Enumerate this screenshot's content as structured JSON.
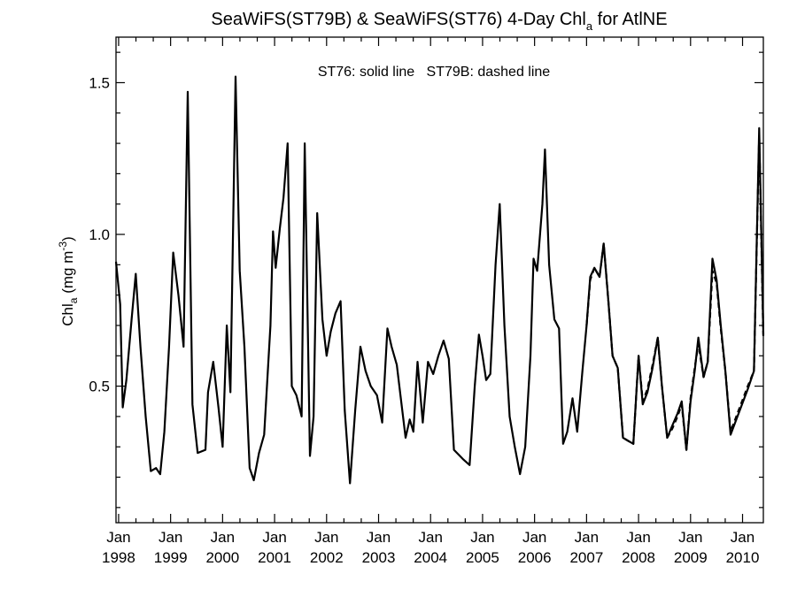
{
  "chart_data": {
    "type": "line",
    "title": {
      "main": "SeaWiFS(ST79B) & SeaWiFS(ST76) 4-Day Chl",
      "subscript": "a",
      "suffix": " for AtlNE"
    },
    "ylabel": {
      "main": "Chl",
      "subscript": "a",
      "units_prefix": " (mg m",
      "units_sup": "-3",
      "units_suffix": ")"
    },
    "annotation": "ST76: solid line   ST79B: dashed line",
    "xlim": [
      1997.95,
      2010.4
    ],
    "ylim": [
      0.05,
      1.65
    ],
    "y_ticks": [
      0.5,
      1.0,
      1.5
    ],
    "y_tick_labels": [
      "0.5",
      "1.0",
      "1.5"
    ],
    "x_ticks": [
      {
        "x": 1998,
        "month": "Jan",
        "year": "1998"
      },
      {
        "x": 1999,
        "month": "Jan",
        "year": "1999"
      },
      {
        "x": 2000,
        "month": "Jan",
        "year": "2000"
      },
      {
        "x": 2001,
        "month": "Jan",
        "year": "2001"
      },
      {
        "x": 2002,
        "month": "Jan",
        "year": "2002"
      },
      {
        "x": 2003,
        "month": "Jan",
        "year": "2003"
      },
      {
        "x": 2004,
        "month": "Jan",
        "year": "2004"
      },
      {
        "x": 2005,
        "month": "Jan",
        "year": "2005"
      },
      {
        "x": 2006,
        "month": "Jan",
        "year": "2006"
      },
      {
        "x": 2007,
        "month": "Jan",
        "year": "2007"
      },
      {
        "x": 2008,
        "month": "Jan",
        "year": "2008"
      },
      {
        "x": 2009,
        "month": "Jan",
        "year": "2009"
      },
      {
        "x": 2010,
        "month": "Jan",
        "year": "2010"
      }
    ],
    "grid": false,
    "legend": "none",
    "series": [
      {
        "label": "ST76",
        "style": "solid",
        "color": "#000000",
        "points": [
          [
            1997.95,
            0.91
          ],
          [
            1998.03,
            0.77
          ],
          [
            1998.08,
            0.43
          ],
          [
            1998.15,
            0.52
          ],
          [
            1998.25,
            0.72
          ],
          [
            1998.33,
            0.87
          ],
          [
            1998.42,
            0.63
          ],
          [
            1998.52,
            0.4
          ],
          [
            1998.62,
            0.22
          ],
          [
            1998.72,
            0.23
          ],
          [
            1998.8,
            0.21
          ],
          [
            1998.88,
            0.35
          ],
          [
            1998.97,
            0.63
          ],
          [
            1999.05,
            0.94
          ],
          [
            1999.15,
            0.8
          ],
          [
            1999.25,
            0.63
          ],
          [
            1999.33,
            1.47
          ],
          [
            1999.42,
            0.44
          ],
          [
            1999.52,
            0.28
          ],
          [
            1999.67,
            0.29
          ],
          [
            1999.72,
            0.48
          ],
          [
            1999.82,
            0.58
          ],
          [
            1999.92,
            0.43
          ],
          [
            2000.0,
            0.3
          ],
          [
            2000.08,
            0.7
          ],
          [
            2000.15,
            0.48
          ],
          [
            2000.25,
            1.52
          ],
          [
            2000.33,
            0.88
          ],
          [
            2000.42,
            0.63
          ],
          [
            2000.52,
            0.23
          ],
          [
            2000.6,
            0.19
          ],
          [
            2000.7,
            0.28
          ],
          [
            2000.8,
            0.34
          ],
          [
            2000.92,
            0.7
          ],
          [
            2000.97,
            1.01
          ],
          [
            2001.02,
            0.89
          ],
          [
            2001.1,
            1.02
          ],
          [
            2001.17,
            1.12
          ],
          [
            2001.25,
            1.3
          ],
          [
            2001.33,
            0.5
          ],
          [
            2001.42,
            0.47
          ],
          [
            2001.52,
            0.4
          ],
          [
            2001.58,
            1.3
          ],
          [
            2001.68,
            0.27
          ],
          [
            2001.75,
            0.4
          ],
          [
            2001.82,
            1.07
          ],
          [
            2001.92,
            0.72
          ],
          [
            2002.0,
            0.6
          ],
          [
            2002.08,
            0.68
          ],
          [
            2002.17,
            0.74
          ],
          [
            2002.27,
            0.78
          ],
          [
            2002.35,
            0.42
          ],
          [
            2002.45,
            0.18
          ],
          [
            2002.55,
            0.42
          ],
          [
            2002.65,
            0.63
          ],
          [
            2002.75,
            0.55
          ],
          [
            2002.85,
            0.5
          ],
          [
            2002.97,
            0.47
          ],
          [
            2003.07,
            0.38
          ],
          [
            2003.17,
            0.69
          ],
          [
            2003.25,
            0.63
          ],
          [
            2003.35,
            0.57
          ],
          [
            2003.42,
            0.47
          ],
          [
            2003.52,
            0.33
          ],
          [
            2003.6,
            0.39
          ],
          [
            2003.67,
            0.35
          ],
          [
            2003.75,
            0.58
          ],
          [
            2003.85,
            0.38
          ],
          [
            2003.95,
            0.58
          ],
          [
            2004.05,
            0.54
          ],
          [
            2004.15,
            0.6
          ],
          [
            2004.25,
            0.65
          ],
          [
            2004.35,
            0.59
          ],
          [
            2004.45,
            0.29
          ],
          [
            2004.62,
            0.26
          ],
          [
            2004.75,
            0.24
          ],
          [
            2004.85,
            0.5
          ],
          [
            2004.93,
            0.67
          ],
          [
            2005.0,
            0.6
          ],
          [
            2005.07,
            0.52
          ],
          [
            2005.15,
            0.54
          ],
          [
            2005.25,
            0.9
          ],
          [
            2005.33,
            1.1
          ],
          [
            2005.42,
            0.7
          ],
          [
            2005.52,
            0.4
          ],
          [
            2005.62,
            0.3
          ],
          [
            2005.72,
            0.21
          ],
          [
            2005.82,
            0.3
          ],
          [
            2005.92,
            0.6
          ],
          [
            2005.98,
            0.92
          ],
          [
            2006.05,
            0.88
          ],
          [
            2006.15,
            1.1
          ],
          [
            2006.2,
            1.28
          ],
          [
            2006.28,
            0.9
          ],
          [
            2006.38,
            0.72
          ],
          [
            2006.47,
            0.69
          ],
          [
            2006.55,
            0.31
          ],
          [
            2006.63,
            0.35
          ],
          [
            2006.73,
            0.46
          ],
          [
            2006.82,
            0.35
          ],
          [
            2006.92,
            0.55
          ],
          [
            2007.0,
            0.7
          ],
          [
            2007.07,
            0.86
          ],
          [
            2007.15,
            0.89
          ],
          [
            2007.25,
            0.86
          ],
          [
            2007.33,
            0.97
          ],
          [
            2007.42,
            0.78
          ],
          [
            2007.5,
            0.6
          ],
          [
            2007.6,
            0.56
          ],
          [
            2007.7,
            0.33
          ],
          [
            2007.8,
            0.32
          ],
          [
            2007.9,
            0.31
          ],
          [
            2008.0,
            0.6
          ],
          [
            2008.08,
            0.44
          ],
          [
            2008.17,
            0.48
          ],
          [
            2008.27,
            0.56
          ],
          [
            2008.37,
            0.66
          ],
          [
            2008.45,
            0.5
          ],
          [
            2008.55,
            0.33
          ],
          [
            2008.65,
            0.37
          ],
          [
            2008.75,
            0.41
          ],
          [
            2008.83,
            0.45
          ],
          [
            2008.92,
            0.29
          ],
          [
            2009.0,
            0.45
          ],
          [
            2009.08,
            0.55
          ],
          [
            2009.15,
            0.66
          ],
          [
            2009.25,
            0.53
          ],
          [
            2009.33,
            0.58
          ],
          [
            2009.42,
            0.92
          ],
          [
            2009.5,
            0.85
          ],
          [
            2009.58,
            0.7
          ],
          [
            2009.67,
            0.55
          ],
          [
            2009.77,
            0.34
          ],
          [
            2010.1,
            0.49
          ],
          [
            2010.22,
            0.55
          ],
          [
            2010.32,
            1.35
          ],
          [
            2010.4,
            0.67
          ]
        ]
      },
      {
        "label": "ST79B",
        "style": "dashed",
        "color": "#000000",
        "points": [
          [
            2007.0,
            0.7
          ],
          [
            2007.07,
            0.85
          ],
          [
            2007.15,
            0.89
          ],
          [
            2007.25,
            0.86
          ],
          [
            2007.33,
            0.97
          ],
          [
            2007.42,
            0.78
          ],
          [
            2007.5,
            0.6
          ],
          [
            2007.6,
            0.56
          ],
          [
            2007.7,
            0.33
          ],
          [
            2007.8,
            0.32
          ],
          [
            2007.9,
            0.31
          ],
          [
            2008.0,
            0.6
          ],
          [
            2008.08,
            0.45
          ],
          [
            2008.17,
            0.49
          ],
          [
            2008.27,
            0.57
          ],
          [
            2008.37,
            0.66
          ],
          [
            2008.45,
            0.5
          ],
          [
            2008.55,
            0.33
          ],
          [
            2008.65,
            0.36
          ],
          [
            2008.75,
            0.4
          ],
          [
            2008.83,
            0.44
          ],
          [
            2008.92,
            0.29
          ],
          [
            2009.0,
            0.46
          ],
          [
            2009.08,
            0.56
          ],
          [
            2009.15,
            0.64
          ],
          [
            2009.25,
            0.53
          ],
          [
            2009.33,
            0.58
          ],
          [
            2009.42,
            0.88
          ],
          [
            2009.5,
            0.84
          ],
          [
            2009.58,
            0.69
          ],
          [
            2009.67,
            0.55
          ],
          [
            2009.77,
            0.35
          ],
          [
            2010.1,
            0.5
          ],
          [
            2010.22,
            0.55
          ],
          [
            2010.32,
            1.33
          ],
          [
            2010.4,
            0.66
          ]
        ]
      }
    ]
  }
}
